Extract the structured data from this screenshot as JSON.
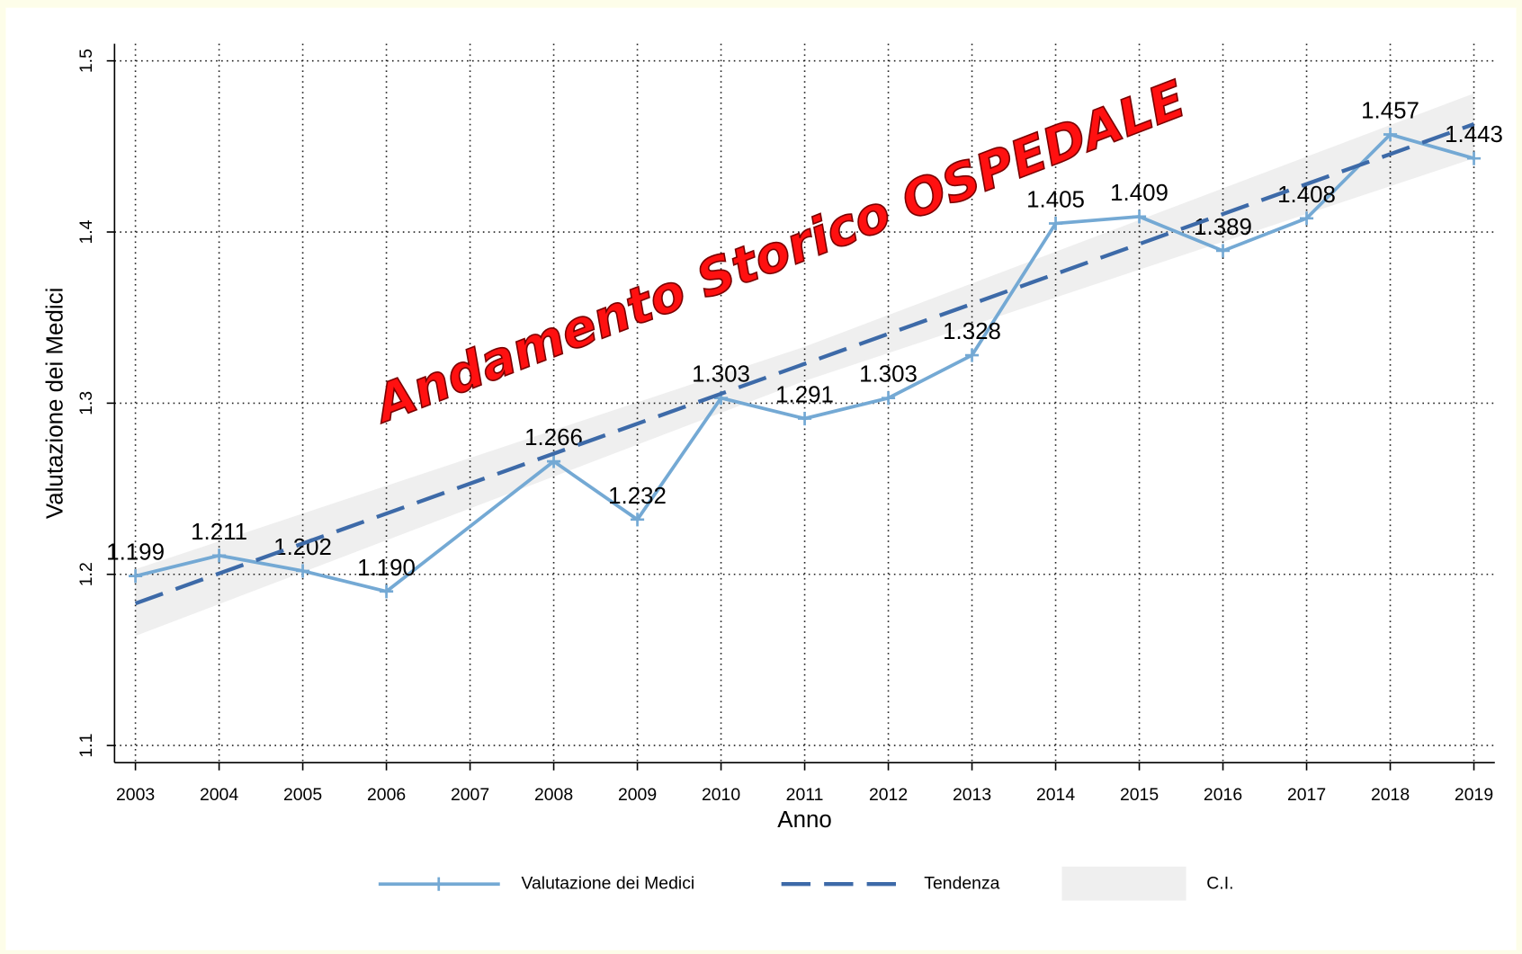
{
  "chart_data": {
    "type": "line",
    "annotation": "Andamento Storico OSPEDALE",
    "xlabel": "Anno",
    "ylabel": "Valutazione dei Medici",
    "xlim": [
      2002.75,
      2019.25
    ],
    "ylim": [
      1.09,
      1.51
    ],
    "xticks": [
      2003,
      2004,
      2005,
      2006,
      2007,
      2008,
      2009,
      2010,
      2011,
      2012,
      2013,
      2014,
      2015,
      2016,
      2017,
      2018,
      2019
    ],
    "yticks": [
      1.1,
      1.2,
      1.3,
      1.4,
      1.5
    ],
    "grid": true,
    "legend": "bottom",
    "series": [
      {
        "name": "Valutazione dei Medici",
        "color": "#74a9d4",
        "style": "solid",
        "x": [
          2003,
          2004,
          2005,
          2006,
          2008,
          2009,
          2010,
          2011,
          2012,
          2013,
          2014,
          2015,
          2016,
          2017,
          2018,
          2019
        ],
        "values": [
          1.199,
          1.211,
          1.202,
          1.19,
          1.266,
          1.232,
          1.303,
          1.291,
          1.303,
          1.328,
          1.405,
          1.409,
          1.389,
          1.408,
          1.457,
          1.443
        ],
        "value_labels": [
          "1.199",
          "1.211",
          "1.202",
          "1.190",
          "1.266",
          "1.232",
          "1.303",
          "1.291",
          "1.303",
          "1.328",
          "1.405",
          "1.409",
          "1.389",
          "1.408",
          "1.457",
          "1.443"
        ]
      },
      {
        "name": "Tendenza",
        "color": "#3d6aa8",
        "style": "dashed",
        "x": [
          2003,
          2019
        ],
        "values": [
          1.183,
          1.463
        ]
      }
    ],
    "ci": {
      "name": "C.I.",
      "color": "#efefef",
      "x": [
        2003,
        2011,
        2019
      ],
      "lower": [
        1.164,
        1.313,
        1.443
      ],
      "upper": [
        1.203,
        1.333,
        1.481
      ]
    }
  }
}
